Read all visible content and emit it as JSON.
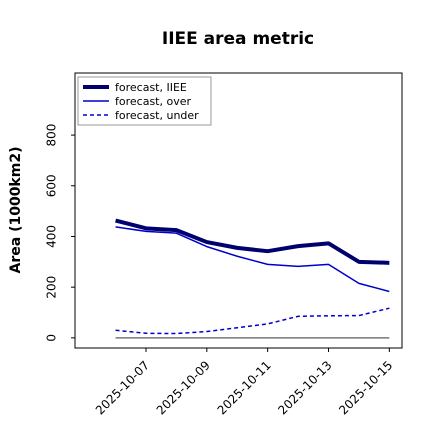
{
  "chart_data": {
    "type": "line",
    "title": "IIEE area metric",
    "ylabel": "Area (1000km2)",
    "x": [
      "2025-10-06",
      "2025-10-07",
      "2025-10-08",
      "2025-10-09",
      "2025-10-10",
      "2025-10-11",
      "2025-10-12",
      "2025-10-13",
      "2025-10-14",
      "2025-10-15"
    ],
    "series": [
      {
        "name": "forecast, IIEE",
        "color": "#00006e",
        "width": 4,
        "dash": "solid",
        "values": [
          463,
          432,
          425,
          378,
          355,
          342,
          362,
          373,
          300,
          296
        ]
      },
      {
        "name": "forecast, over",
        "color": "#0000cc",
        "width": 1.5,
        "dash": "solid",
        "values": [
          438,
          420,
          413,
          360,
          322,
          290,
          282,
          290,
          215,
          183
        ]
      },
      {
        "name": "forecast, under",
        "color": "#0000cc",
        "width": 1.5,
        "dash": "dashed",
        "values": [
          30,
          18,
          17,
          25,
          40,
          55,
          85,
          87,
          88,
          117
        ]
      }
    ],
    "hline": {
      "value": 0,
      "color": "#777777"
    },
    "xlim": [
      "2025-10-04T16:00",
      "2025-10-15T10:00"
    ],
    "xticks": [
      "2025-10-07",
      "2025-10-09",
      "2025-10-11",
      "2025-10-13",
      "2025-10-15"
    ],
    "xtick_colors": [
      "#228b22",
      "#000000",
      "#000000",
      "#000000",
      "#000000"
    ],
    "ylim": [
      -40,
      1045
    ],
    "yticks": [
      0,
      200,
      400,
      600,
      800
    ],
    "legend": "upper left"
  }
}
